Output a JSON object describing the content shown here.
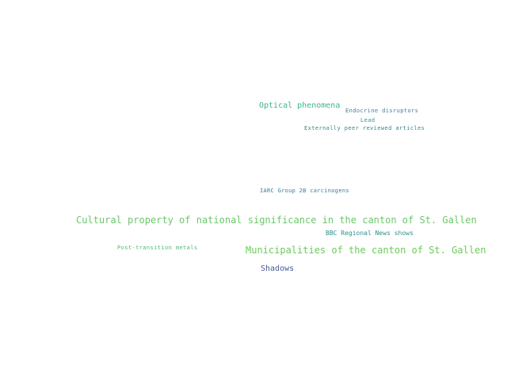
{
  "word_cloud": {
    "words": [
      {
        "id": "optical",
        "text": "Optical phenomena"
      },
      {
        "id": "endocrine",
        "text": "Endocrine disruptors"
      },
      {
        "id": "lead",
        "text": "Lead"
      },
      {
        "id": "externally",
        "text": "Externally peer reviewed articles"
      },
      {
        "id": "iarc",
        "text": "IARC Group 2B carcinogens"
      },
      {
        "id": "cultural",
        "text": "Cultural property of national significance in the canton of St. Gallen"
      },
      {
        "id": "bbc",
        "text": "BBC Regional News shows"
      },
      {
        "id": "post",
        "text": "Post-transition metals"
      },
      {
        "id": "muni",
        "text": "Municipalities of the canton of St. Gallen"
      },
      {
        "id": "shadows",
        "text": "Shadows"
      }
    ]
  }
}
